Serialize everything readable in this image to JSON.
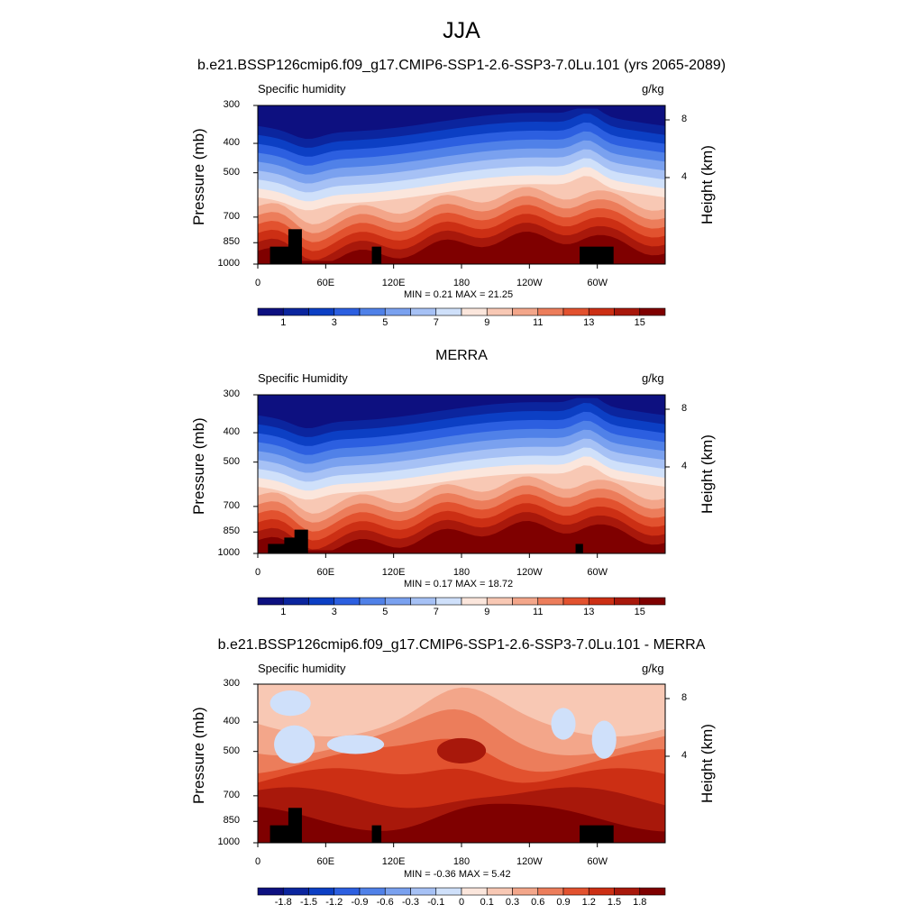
{
  "main_title": "JJA",
  "panels": [
    {
      "title": "b.e21.BSSP126cmip6.f09_g17.CMIP6-SSP1-2.6-SSP3-7.0Lu.101 (yrs 2065-2089)",
      "left_label": "Specific humidity",
      "right_label": "g/kg",
      "minmax": "MIN =   0.21  MAX =  21.25"
    },
    {
      "title": "MERRA",
      "left_label": "Specific Humidity",
      "right_label": "g/kg",
      "minmax": "MIN =   0.17  MAX =  18.72"
    },
    {
      "title": "b.e21.BSSP126cmip6.f09_g17.CMIP6-SSP1-2.6-SSP3-7.0Lu.101 - MERRA",
      "left_label": "Specific humidity",
      "right_label": "g/kg",
      "minmax": "MIN =  -0.36  MAX =   5.42"
    }
  ],
  "chart_data": [
    {
      "type": "heatmap",
      "title": "b.e21.BSSP126cmip6.f09_g17.CMIP6-SSP1-2.6-SSP3-7.0Lu.101 (yrs 2065-2089)",
      "ylabel": "Pressure (mb)",
      "y2label": "Height (km)",
      "xticks": [
        "0",
        "60E",
        "120E",
        "180",
        "120W",
        "60W"
      ],
      "yticks": [
        300,
        400,
        500,
        700,
        850,
        1000
      ],
      "y2ticks": [
        8,
        4
      ],
      "ylim": [
        1000,
        300
      ],
      "colorbar_labels": [
        "1",
        "3",
        "5",
        "7",
        "9",
        "11",
        "13",
        "15"
      ],
      "colorbar_colors": [
        "#0d1080",
        "#0b259e",
        "#0c3fc4",
        "#2c5fe0",
        "#5081e8",
        "#7aa1ef",
        "#a6c1f5",
        "#cfe0fa",
        "#fbe6dc",
        "#f8c8b4",
        "#f3a68a",
        "#ec7d5b",
        "#e2522f",
        "#cc2f14",
        "#a8180b",
        "#7f0000"
      ],
      "min": 0.21,
      "max": 21.25
    },
    {
      "type": "heatmap",
      "title": "MERRA",
      "ylabel": "Pressure (mb)",
      "y2label": "Height (km)",
      "xticks": [
        "0",
        "60E",
        "120E",
        "180",
        "120W",
        "60W"
      ],
      "yticks": [
        300,
        400,
        500,
        700,
        850,
        1000
      ],
      "y2ticks": [
        8,
        4
      ],
      "ylim": [
        1000,
        300
      ],
      "colorbar_labels": [
        "1",
        "3",
        "5",
        "7",
        "9",
        "11",
        "13",
        "15"
      ],
      "colorbar_colors": [
        "#0d1080",
        "#0b259e",
        "#0c3fc4",
        "#2c5fe0",
        "#5081e8",
        "#7aa1ef",
        "#a6c1f5",
        "#cfe0fa",
        "#fbe6dc",
        "#f8c8b4",
        "#f3a68a",
        "#ec7d5b",
        "#e2522f",
        "#cc2f14",
        "#a8180b",
        "#7f0000"
      ],
      "min": 0.17,
      "max": 18.72
    },
    {
      "type": "heatmap",
      "title": "b.e21.BSSP126cmip6.f09_g17.CMIP6-SSP1-2.6-SSP3-7.0Lu.101 - MERRA",
      "ylabel": "Pressure (mb)",
      "y2label": "Height (km)",
      "xticks": [
        "0",
        "60E",
        "120E",
        "180",
        "120W",
        "60W"
      ],
      "yticks": [
        300,
        400,
        500,
        700,
        850,
        1000
      ],
      "y2ticks": [
        8,
        4
      ],
      "ylim": [
        1000,
        300
      ],
      "colorbar_labels": [
        "-1.8",
        "-1.5",
        "-1.2",
        "-0.9",
        "-0.6",
        "-0.3",
        "-0.1",
        "0",
        "0.1",
        "0.3",
        "0.6",
        "0.9",
        "1.2",
        "1.5",
        "1.8"
      ],
      "colorbar_colors": [
        "#0d1080",
        "#0b259e",
        "#0c3fc4",
        "#2c5fe0",
        "#5081e8",
        "#7aa1ef",
        "#a6c1f5",
        "#cfe0fa",
        "#fbe6dc",
        "#f8c8b4",
        "#f3a68a",
        "#ec7d5b",
        "#e2522f",
        "#cc2f14",
        "#a8180b",
        "#7f0000"
      ],
      "min": -0.36,
      "max": 5.42
    }
  ]
}
